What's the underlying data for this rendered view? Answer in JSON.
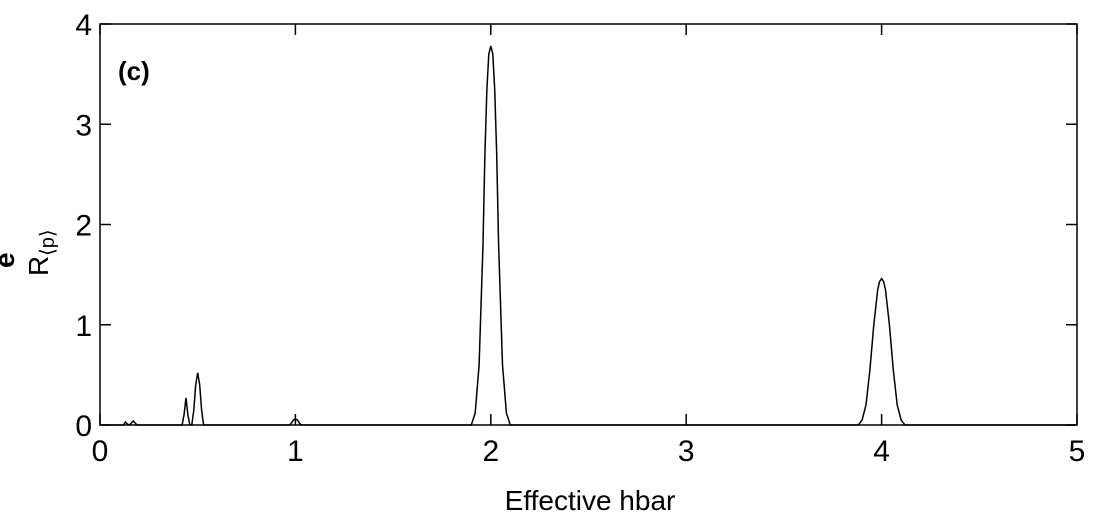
{
  "chart_data": {
    "type": "line",
    "panel_label": "(c)",
    "xlabel": "Effective hbar",
    "ylabel": "R",
    "ylabel_subscript": "⟨p⟩",
    "ylabel_mark": "e",
    "xlim": [
      0,
      5
    ],
    "ylim": [
      0,
      4
    ],
    "x_ticks": [
      "0",
      "1",
      "2",
      "3",
      "4",
      "5"
    ],
    "y_ticks": [
      "0",
      "1",
      "2",
      "3",
      "4"
    ],
    "grid": false,
    "line_color": "#000000",
    "series": [
      {
        "x": [
          0.12,
          0.13,
          0.14,
          0.15,
          0.16,
          0.17,
          0.18,
          0.19,
          0.2,
          0.42,
          0.43,
          0.44,
          0.45,
          0.46,
          0.47,
          0.48,
          0.49,
          0.5,
          0.51,
          0.52,
          0.53,
          0.97,
          0.98,
          0.99,
          1.0,
          1.01,
          1.02,
          1.03,
          1.9,
          1.92,
          1.94,
          1.96,
          1.97,
          1.98,
          1.99,
          2.0,
          2.01,
          2.02,
          2.03,
          2.04,
          2.06,
          2.08,
          2.1,
          3.88,
          3.9,
          3.92,
          3.94,
          3.96,
          3.98,
          3.99,
          4.0,
          4.01,
          4.02,
          4.04,
          4.06,
          4.08,
          4.1,
          4.12
        ],
        "y": [
          0,
          0.03,
          0.01,
          0,
          0.02,
          0.04,
          0.02,
          0,
          0,
          0,
          0.1,
          0.27,
          0.1,
          0,
          0,
          0.15,
          0.4,
          0.52,
          0.4,
          0.15,
          0,
          0,
          0.02,
          0.05,
          0.06,
          0.05,
          0.02,
          0,
          0,
          0.12,
          0.6,
          1.8,
          2.7,
          3.35,
          3.7,
          3.78,
          3.7,
          3.35,
          2.7,
          1.8,
          0.6,
          0.12,
          0,
          0,
          0.05,
          0.2,
          0.55,
          1.0,
          1.35,
          1.43,
          1.46,
          1.43,
          1.35,
          1.0,
          0.55,
          0.2,
          0.05,
          0
        ]
      }
    ]
  }
}
